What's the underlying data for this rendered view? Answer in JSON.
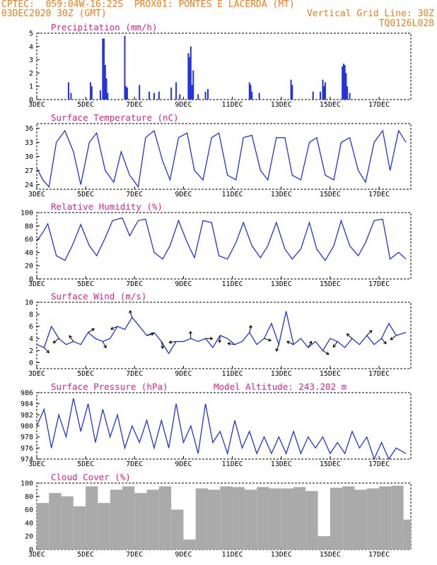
{
  "header": {
    "line1": "CPTEC:  059:04W-16:22S  PROX01: PONTES E LACERDA (MT)",
    "line2_left": "03DEC2020 30Z (GMT)",
    "line2_right": "Vertical Grid Line: 30Z",
    "line3_right": "TQ0126L028"
  },
  "colors": {
    "header": "#f07d1a",
    "title": "#e0208f",
    "series": "#2233dd",
    "cloud": "#aaaaaa"
  },
  "chart_data": [
    {
      "id": "precip",
      "type": "bar",
      "title": "Precipitation (mm/h)",
      "ylim": [
        0,
        5
      ],
      "yticks": [
        0,
        1,
        2,
        3,
        4,
        5
      ],
      "x_tick_labels": [
        "3DEC",
        "5DEC",
        "7DEC",
        "9DEC",
        "11DEC",
        "13DEC",
        "15DEC",
        "17DEC"
      ],
      "x_tick_days": [
        0,
        2,
        4,
        6,
        8,
        10,
        12,
        14
      ],
      "values": [
        [
          1.3,
          1.3
        ],
        [
          1.4,
          0.5
        ],
        [
          2.2,
          1.3
        ],
        [
          2.25,
          1.0
        ],
        [
          2.6,
          0.7
        ],
        [
          2.7,
          4.6
        ],
        [
          2.75,
          4.6
        ],
        [
          2.8,
          2.6
        ],
        [
          2.85,
          1.6
        ],
        [
          2.9,
          0.5
        ],
        [
          3.6,
          4.8
        ],
        [
          3.65,
          1.0
        ],
        [
          3.7,
          0.9
        ],
        [
          4.2,
          1.1
        ],
        [
          4.6,
          0.6
        ],
        [
          4.8,
          0.5
        ],
        [
          5.0,
          0.6
        ],
        [
          5.5,
          0.9
        ],
        [
          5.7,
          1.3
        ],
        [
          5.85,
          0.4
        ],
        [
          6.2,
          3.5
        ],
        [
          6.25,
          3.2
        ],
        [
          6.3,
          4.0
        ],
        [
          6.35,
          1.1
        ],
        [
          6.4,
          2.2
        ],
        [
          6.6,
          0.4
        ],
        [
          6.9,
          0.6
        ],
        [
          7.0,
          0.8
        ],
        [
          8.7,
          1.3
        ],
        [
          8.75,
          1.1
        ],
        [
          8.8,
          0.6
        ],
        [
          9.1,
          0.5
        ],
        [
          10.4,
          1.5
        ],
        [
          10.45,
          1.1
        ],
        [
          11.3,
          0.6
        ],
        [
          11.6,
          0.6
        ],
        [
          11.7,
          1.5
        ],
        [
          11.75,
          1.0
        ],
        [
          11.8,
          1.3
        ],
        [
          12.5,
          2.5
        ],
        [
          12.55,
          2.7
        ],
        [
          12.6,
          2.6
        ],
        [
          12.65,
          2.0
        ],
        [
          12.7,
          1.0
        ],
        [
          12.8,
          0.5
        ]
      ]
    },
    {
      "id": "temp",
      "type": "line",
      "title": "Surface Temperature (nC)",
      "ylim": [
        23,
        37
      ],
      "yticks": [
        24,
        27,
        30,
        33,
        36
      ],
      "x_tick_labels": [
        "3DEC",
        "5DEC",
        "7DEC",
        "9DEC",
        "11DEC",
        "13DEC",
        "15DEC",
        "17DEC"
      ],
      "x": [
        0,
        0.25,
        0.5,
        0.8,
        1.15,
        1.5,
        1.8,
        2.15,
        2.45,
        2.8,
        3.15,
        3.45,
        3.8,
        4.15,
        4.45,
        4.8,
        5.15,
        5.45,
        5.8,
        6.15,
        6.45,
        6.8,
        7.15,
        7.45,
        7.8,
        8.15,
        8.45,
        8.8,
        9.15,
        9.45,
        9.8,
        10.15,
        10.45,
        10.8,
        11.15,
        11.45,
        11.8,
        12.15,
        12.45,
        12.8,
        13.15,
        13.45,
        13.8,
        14.15,
        14.45,
        14.8,
        15.1
      ],
      "values": [
        27.5,
        25,
        23.5,
        33,
        35.5,
        31,
        24,
        33,
        35,
        27,
        24.5,
        31,
        26,
        23.5,
        34,
        35.5,
        29,
        25,
        34,
        35,
        27,
        25,
        34,
        35,
        26,
        25,
        34,
        34.5,
        27,
        25,
        34,
        34,
        26,
        25,
        33,
        34,
        26,
        25,
        33,
        34,
        27,
        24.5,
        33,
        35.5,
        27,
        35.5,
        33
      ]
    },
    {
      "id": "rh",
      "type": "line",
      "title": "Relative Humidity (%)",
      "ylim": [
        0,
        100
      ],
      "yticks": [
        0,
        20,
        40,
        60,
        80,
        100
      ],
      "x_tick_labels": [
        "3DEC",
        "5DEC",
        "7DEC",
        "9DEC",
        "11DEC",
        "13DEC",
        "15DEC",
        "17DEC"
      ],
      "x": [
        0,
        0.25,
        0.45,
        0.8,
        1.15,
        1.45,
        1.8,
        2.15,
        2.45,
        2.8,
        3.1,
        3.5,
        3.8,
        4.15,
        4.45,
        4.8,
        5.15,
        5.45,
        5.8,
        6.15,
        6.45,
        6.8,
        7.15,
        7.45,
        7.8,
        8.15,
        8.45,
        8.8,
        9.15,
        9.45,
        9.8,
        10.15,
        10.45,
        10.8,
        11.15,
        11.45,
        11.8,
        12.15,
        12.45,
        12.8,
        13.15,
        13.45,
        13.8,
        14.15,
        14.45,
        14.8,
        15.1
      ],
      "values": [
        57,
        70,
        83,
        35,
        28,
        50,
        82,
        50,
        35,
        62,
        88,
        92,
        65,
        88,
        90,
        40,
        30,
        50,
        88,
        55,
        32,
        88,
        85,
        35,
        30,
        55,
        85,
        50,
        32,
        50,
        85,
        45,
        30,
        45,
        85,
        45,
        28,
        50,
        88,
        50,
        35,
        55,
        88,
        90,
        30,
        40,
        30
      ]
    },
    {
      "id": "wind",
      "type": "line",
      "title": "Surface Wind (m/s)",
      "ylim": [
        -1,
        10
      ],
      "yticks": [
        0,
        2,
        4,
        6,
        8,
        10
      ],
      "x_tick_labels": [
        "3DEC",
        "5DEC",
        "7DEC",
        "9DEC",
        "11DEC",
        "13DEC",
        "15DEC",
        "17DEC"
      ],
      "x": [
        0,
        0.3,
        0.6,
        0.9,
        1.2,
        1.5,
        1.8,
        2.1,
        2.4,
        2.7,
        3.0,
        3.3,
        3.6,
        3.9,
        4.2,
        4.5,
        4.8,
        5.1,
        5.4,
        5.7,
        6.0,
        6.3,
        6.6,
        6.9,
        7.2,
        7.5,
        7.8,
        8.1,
        8.4,
        8.7,
        9.0,
        9.3,
        9.6,
        9.9,
        10.2,
        10.5,
        10.8,
        11.1,
        11.4,
        11.7,
        12.0,
        12.3,
        12.6,
        12.9,
        13.2,
        13.5,
        13.8,
        14.1,
        14.4,
        14.7,
        15.1
      ],
      "values": [
        3,
        2.5,
        6,
        4,
        3,
        3.5,
        3,
        5,
        4,
        3.5,
        4,
        6,
        5.5,
        7.5,
        6,
        4.5,
        5,
        3.5,
        1.5,
        3.5,
        3.5,
        4,
        3.5,
        4,
        2.5,
        4.5,
        4,
        3,
        3.5,
        5,
        3,
        4,
        6.5,
        3,
        8.5,
        3,
        4,
        2.5,
        3.5,
        2,
        4,
        3.5,
        2.5,
        4,
        3,
        4.5,
        3,
        4,
        6.5,
        4.5,
        5
      ]
    },
    {
      "id": "pres",
      "type": "line",
      "title": "Surface Pressure (hPa)",
      "annotation": "Model Altitude: 243.202 m",
      "ylim": [
        974,
        986
      ],
      "yticks": [
        974,
        976,
        978,
        980,
        982,
        984,
        986
      ],
      "x_tick_labels": [
        "3DEC",
        "5DEC",
        "7DEC",
        "9DEC",
        "11DEC",
        "13DEC",
        "15DEC",
        "17DEC"
      ],
      "x": [
        0,
        0.3,
        0.6,
        0.9,
        1.2,
        1.5,
        1.8,
        2.1,
        2.4,
        2.7,
        3.0,
        3.3,
        3.6,
        3.9,
        4.2,
        4.5,
        4.8,
        5.1,
        5.4,
        5.7,
        6.0,
        6.3,
        6.6,
        6.9,
        7.2,
        7.5,
        7.8,
        8.1,
        8.4,
        8.7,
        9.0,
        9.3,
        9.6,
        9.9,
        10.2,
        10.5,
        10.8,
        11.1,
        11.4,
        11.7,
        12.0,
        12.3,
        12.6,
        12.9,
        13.2,
        13.5,
        13.8,
        14.1,
        14.4,
        14.7,
        15.1
      ],
      "values": [
        980,
        983,
        976,
        982,
        978,
        985,
        979,
        984,
        977,
        983,
        978,
        982,
        976,
        980,
        977,
        981,
        976,
        981,
        976,
        984,
        977,
        980,
        975,
        984,
        977,
        979,
        975,
        981,
        976,
        979,
        975,
        978,
        975,
        978,
        975,
        979,
        975,
        978,
        976,
        978,
        975,
        977,
        975,
        979,
        976,
        978,
        974,
        977,
        974,
        976,
        975
      ]
    },
    {
      "id": "cloud",
      "type": "bar",
      "title": "Cloud Cover (%)",
      "ylim": [
        0,
        100
      ],
      "yticks": [
        0,
        20,
        40,
        60,
        80,
        100
      ],
      "x_tick_labels": [
        "3DEC",
        "5DEC",
        "7DEC",
        "9DEC",
        "11DEC",
        "13DEC",
        "15DEC",
        "17DEC"
      ],
      "x": [
        0,
        0.5,
        1.0,
        1.5,
        2.0,
        2.5,
        3.0,
        3.5,
        4.0,
        4.5,
        5.0,
        5.5,
        6.0,
        6.5,
        7.0,
        7.5,
        8.0,
        8.5,
        9.0,
        9.5,
        10.0,
        10.5,
        11.0,
        11.5,
        12.0,
        12.5,
        13.0,
        13.5,
        14.0,
        14.5,
        15.0
      ],
      "values": [
        70,
        85,
        80,
        65,
        95,
        70,
        90,
        95,
        85,
        90,
        95,
        60,
        15,
        92,
        90,
        95,
        94,
        90,
        94,
        92,
        92,
        94,
        88,
        20,
        93,
        95,
        90,
        92,
        95,
        96,
        45
      ]
    }
  ]
}
